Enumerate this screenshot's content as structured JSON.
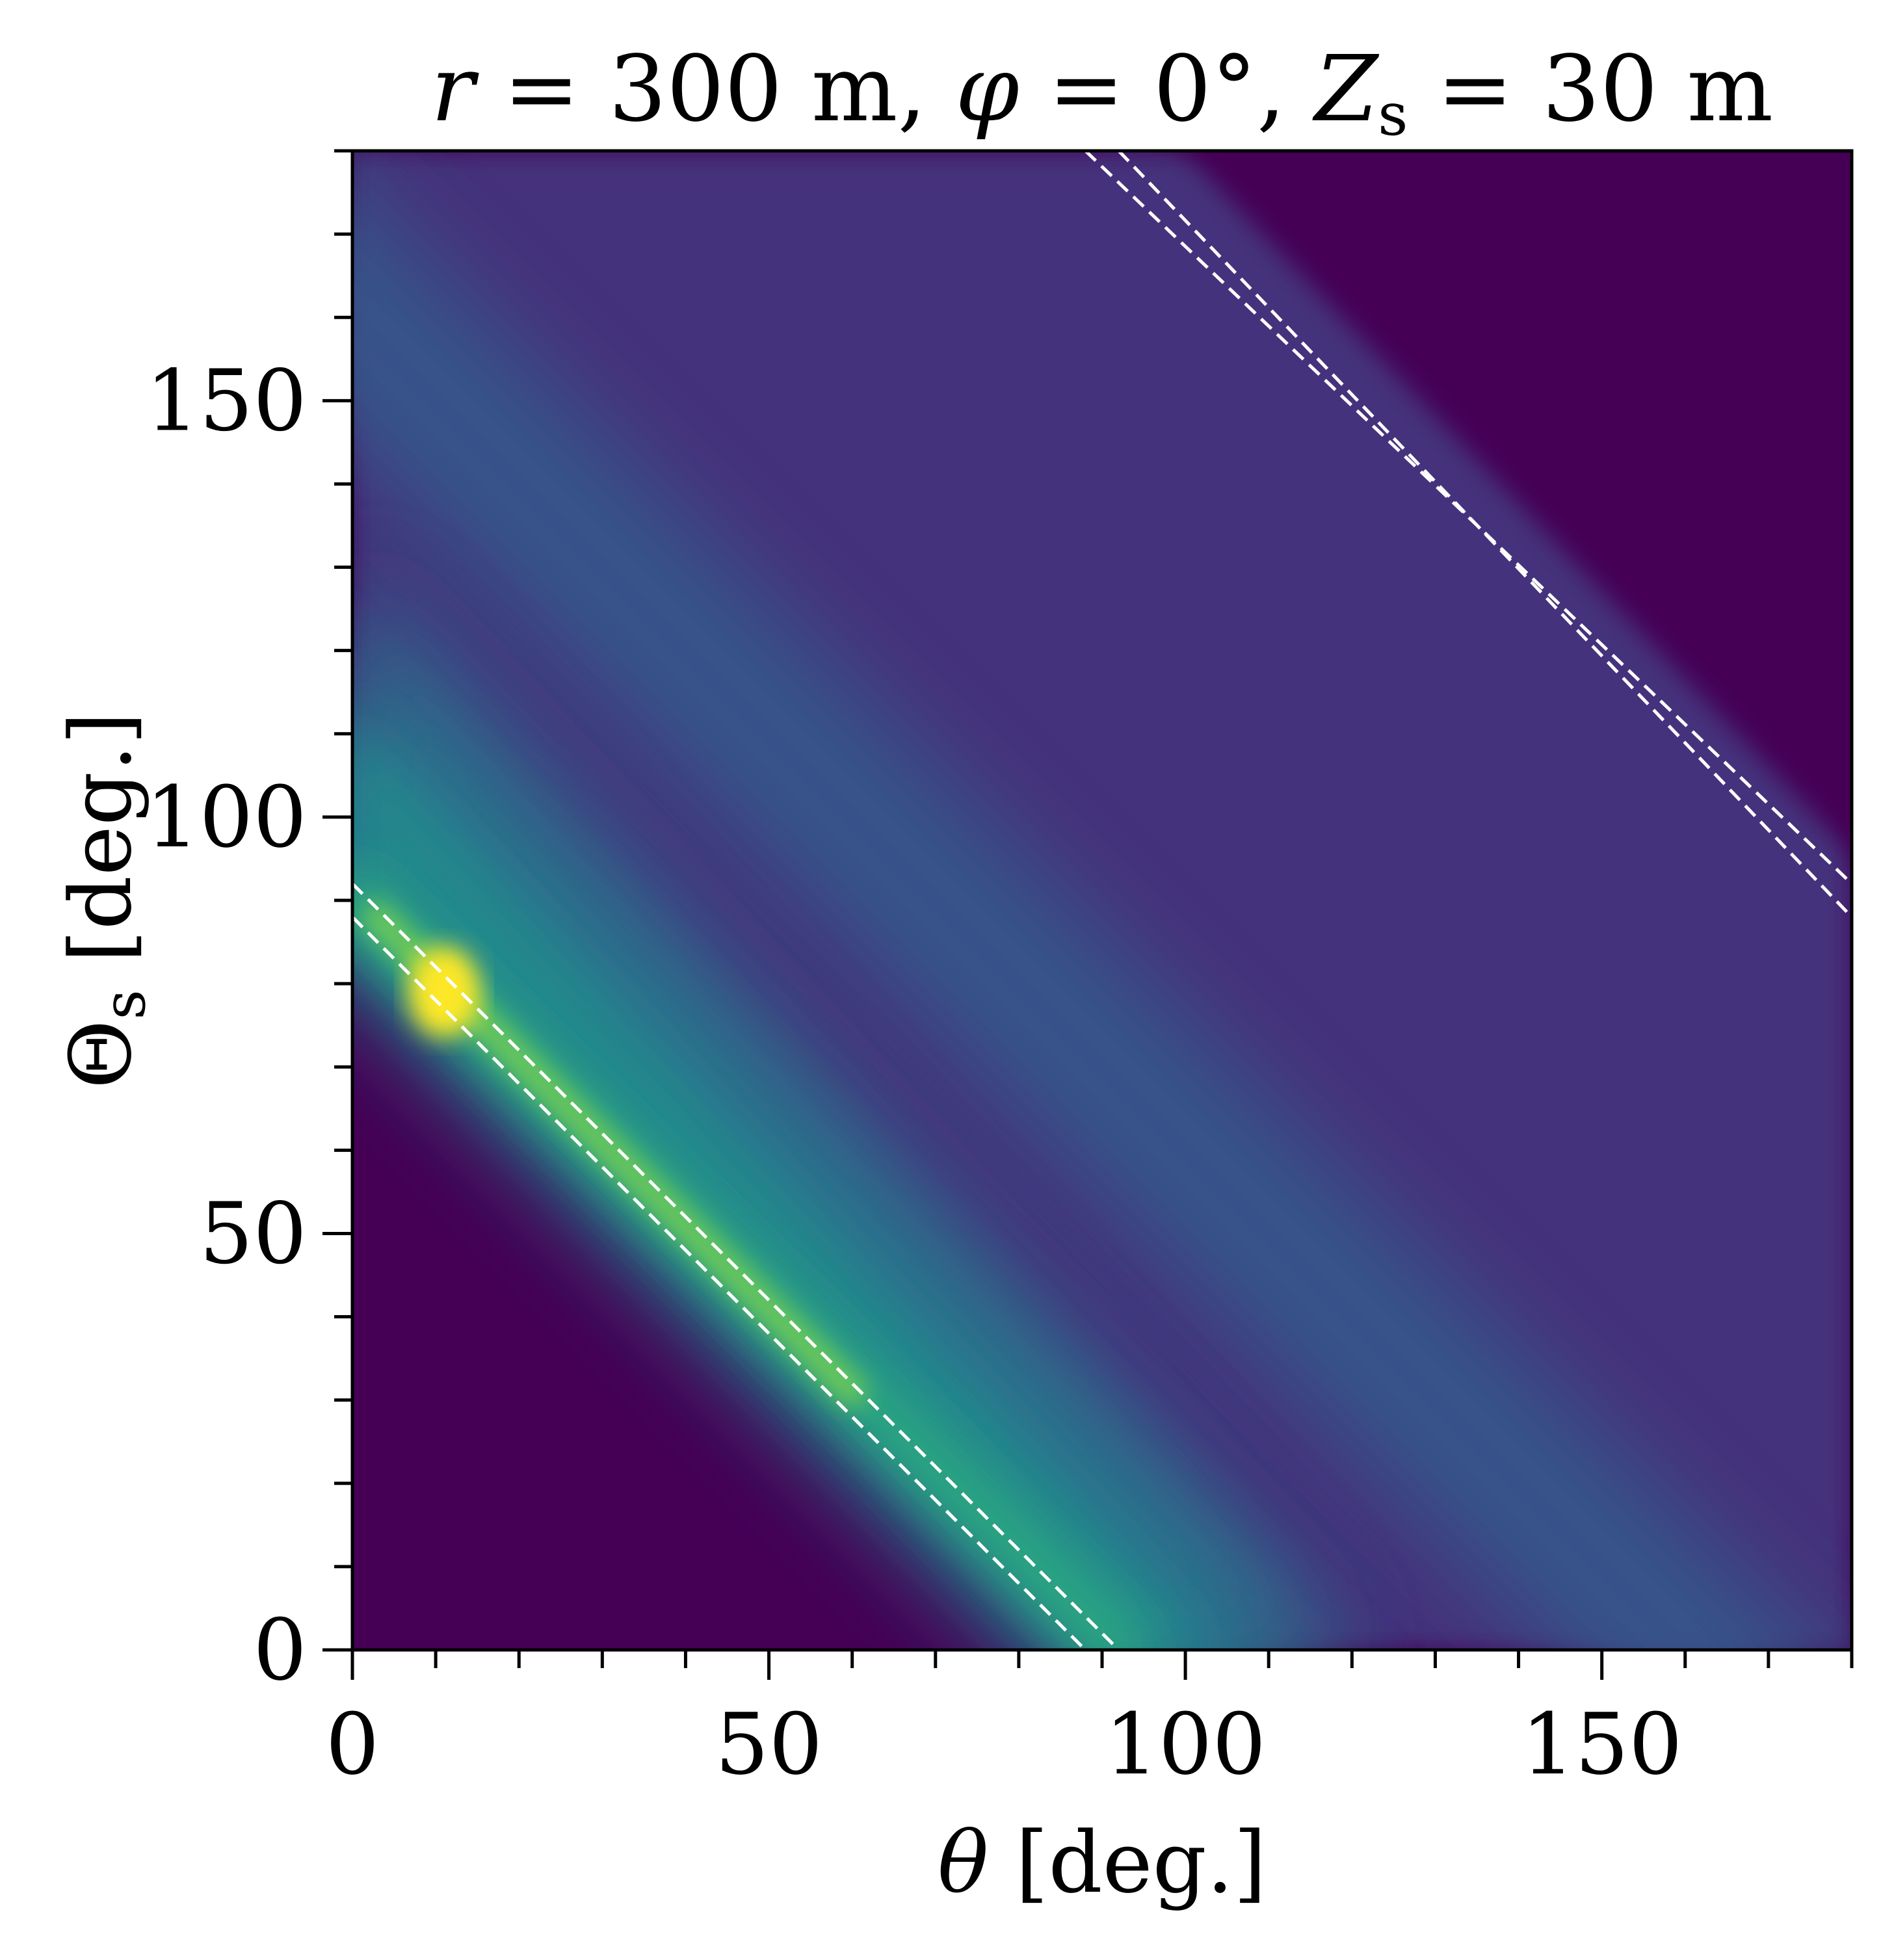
{
  "chart_data": {
    "type": "heatmap",
    "title": "r = 300 m, φ = 0°, Z_s = 30 m",
    "title_parts": {
      "r": "r",
      "eq": " = ",
      "r_value": "300 m",
      "sep": ", ",
      "phi": "φ",
      "phi_value": "0°",
      "z": "Z",
      "z_sub": "s",
      "z_value": "30 m"
    },
    "xlabel": "θ [deg.]",
    "xlabel_parts": {
      "symbol": "θ",
      "unit": " [deg.]"
    },
    "ylabel": "Θs [deg.]",
    "ylabel_parts": {
      "symbol": "Θ",
      "sub": "s",
      "unit": " [deg.]"
    },
    "xlim": [
      0,
      180
    ],
    "ylim": [
      0,
      180
    ],
    "xticks": [
      0,
      50,
      100,
      150
    ],
    "yticks": [
      0,
      50,
      100,
      150
    ],
    "x_minor_step": 10,
    "y_minor_step": 10,
    "colormap": "viridis",
    "colors": {
      "low": "#440154",
      "high": "#fde725",
      "guide_lines": "#ffffff"
    },
    "features": [
      {
        "kind": "ridge",
        "theta": [
          0,
          92
        ],
        "theta_s": [
          88,
          0
        ],
        "peak_theta": 11,
        "peak_theta_s": 79,
        "peak_value": 1.0
      },
      {
        "kind": "band",
        "theta_at_theta_s0": 115,
        "slope": -1,
        "intensity": 0.42
      },
      {
        "kind": "band",
        "theta_at_theta_s0": 180,
        "slope": -1,
        "intensity": 0.28
      }
    ],
    "guide_lines": [
      {
        "style": "dashed",
        "points": [
          [
            0,
            92
          ],
          [
            92,
            0
          ]
        ]
      },
      {
        "style": "dashed",
        "points": [
          [
            0,
            88
          ],
          [
            88,
            0
          ]
        ]
      },
      {
        "style": "dashed",
        "points": [
          [
            88,
            180
          ],
          [
            180,
            92
          ]
        ]
      },
      {
        "style": "dashed",
        "points": [
          [
            92,
            180
          ],
          [
            180,
            88
          ]
        ]
      }
    ],
    "grid": false,
    "legend": "none"
  }
}
